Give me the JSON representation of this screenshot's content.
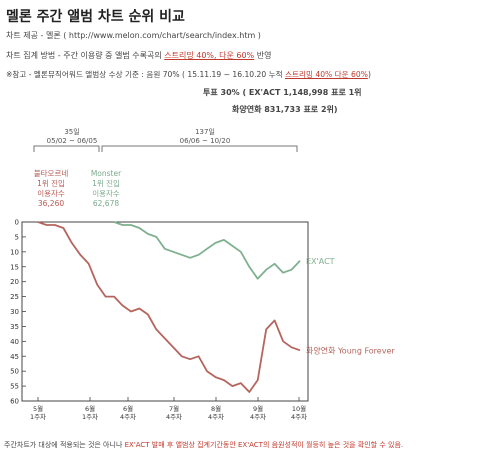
{
  "title": "멜론 주간 앨범 차트 순위 비교",
  "info": {
    "source": "차트 제공 - 멜론 ( http://www.melon.com/chart/search/index.htm )",
    "method_prefix": "차트 집계 방법 - 주간 이용량 중 앨범 수록곡의 ",
    "method_highlight": "스트리밍 40%, 다운 60%",
    "method_suffix": " 반영",
    "ref_prefix": "※참고 - 멜론뮤직어워드 앨범상 수상 기준 : 음원 70% ( 15.11.19 ~ 16.10.20 누적 ",
    "ref_highlight": "스트리밍 40% 다운 60%",
    "ref_suffix": ")",
    "vote_line": "투표 30% ( EX'ACT 1,148,998 표로 1위",
    "vote_line2": "화양연화   831,733 표로 2위)"
  },
  "braces": {
    "first_label_line1": "35일",
    "first_label_line2": "05/02 ~ 06/05",
    "second_label_line1": "137일",
    "second_label_line2": "06/06 ~ 10/20"
  },
  "annotations": {
    "red_line1": "불타오르네",
    "red_line2": "1위 진입",
    "red_line3": "이용자수",
    "red_line4": "36,260",
    "green_line1": "Monster",
    "green_line2": "1위 진입",
    "green_line3": "이용자수",
    "green_line4": "62,678"
  },
  "footer": {
    "prefix": "주간차트가 대상에 적용되는 것은 아니나 ",
    "highlight": "EX'ACT 발매 후 앨범상 집계기간동안 EX'ACT의 음원성적이 월등히 높은 것을 확인할 수 있음."
  },
  "chart_data": {
    "type": "line",
    "x_labels": [
      "5월 1주차",
      "6월 1주차",
      "6월 4주차",
      "7월 4주차",
      "8월 4주차",
      "9월 4주차",
      "10월 4주차"
    ],
    "ylim": [
      0,
      60
    ],
    "y_inverted": true,
    "yticks": [
      0,
      5,
      10,
      15,
      20,
      25,
      30,
      35,
      40,
      45,
      50,
      55,
      60
    ],
    "series": [
      {
        "name": "화양연화 Young Forever",
        "color": "#b5655d",
        "values": [
          0,
          1,
          1,
          2,
          7,
          11,
          14,
          21,
          25,
          25,
          28,
          30,
          29,
          31,
          36,
          39,
          42,
          45,
          46,
          45,
          50,
          52,
          53,
          55,
          54,
          57,
          53,
          36,
          33,
          40,
          42,
          43
        ]
      },
      {
        "name": "EX'ACT",
        "color": "#7fb08f",
        "values": [
          null,
          null,
          null,
          null,
          null,
          null,
          null,
          null,
          null,
          0,
          1,
          1,
          2,
          4,
          5,
          9,
          10,
          11,
          12,
          11,
          9,
          7,
          6,
          8,
          10,
          15,
          19,
          16,
          14,
          17,
          16,
          13
        ]
      }
    ]
  }
}
